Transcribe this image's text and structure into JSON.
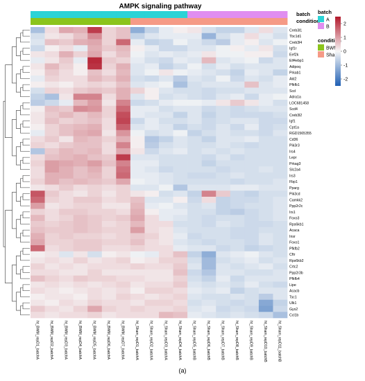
{
  "chart_data": {
    "type": "heatmap",
    "title": "AMPK signaling pathway",
    "panel_label": "(a)",
    "rows": [
      "Creb3l1",
      "Tbc1d1",
      "Creb3l4",
      "Igf1r",
      "Eef2k",
      "Eif4ebp1",
      "Adipoq",
      "Prkab1",
      "Akt2",
      "Pfkfb1",
      "Scd",
      "Adra1a",
      "LOC681458",
      "Scd4",
      "Creb3l2",
      "Igf1",
      "Cpt1a",
      "RGD1565355",
      "Cd36",
      "Pik3r3",
      "Irs4",
      "Lepr",
      "Prkag3",
      "Slc2a4",
      "Irs3",
      "Fbp1",
      "Pparg",
      "Pik3cd",
      "Camkk2",
      "Ppp2r2c",
      "Irs1",
      "Foxo3",
      "Rps6kb1",
      "Acaca",
      "Insr",
      "Foxo1",
      "Pfkfb2",
      "Cftr",
      "Rps6kb2",
      "Crtc2",
      "Ppp2r3b",
      "Pfkfb4",
      "Lipe",
      "Acacb",
      "Tsc1",
      "Ulk1",
      "Gys2",
      "Ccl1b"
    ],
    "columns": [
      "ht_BWM_repD1_batchA",
      "ht_BWM_repD2_batchA",
      "ht_BWM_repD3_batchA",
      "ht_BWM_repD4_batchA",
      "ht_BWM_repD5_batchA",
      "ht_BWM_repD6_batchA",
      "ht_BWM_repD7_batchA",
      "ht_Sham_repD1_batchA",
      "ht_Sham_repD2_batchA",
      "ht_Sham_repD3_batchA",
      "ht_Sham_repD4_batchA",
      "ht_Sham_repD5_batchB",
      "ht_Sham_repD6_batchB",
      "ht_Sham_repD7_batchB",
      "ht_Sham_repD8_batchB",
      "ht_Sham_repD9_batchB",
      "ht_Sham_repD10_batchB",
      "ht_Sham_repD11_batchB"
    ],
    "annotations": [
      {
        "name": "batch",
        "values": [
          "A",
          "A",
          "A",
          "A",
          "A",
          "A",
          "A",
          "A",
          "A",
          "A",
          "A",
          "B",
          "B",
          "B",
          "B",
          "B",
          "B",
          "B"
        ]
      },
      {
        "name": "condition",
        "values": [
          "BWM",
          "BWM",
          "BWM",
          "BWM",
          "BWM",
          "BWM",
          "BWM",
          "Sham",
          "Sham",
          "Sham",
          "Sham",
          "Sham",
          "Sham",
          "Sham",
          "Sham",
          "Sham",
          "Sham",
          "Sham"
        ]
      }
    ],
    "legend": {
      "batch": {
        "title": "batch",
        "items": [
          {
            "label": "A",
            "color": "#2bd3d6"
          },
          {
            "label": "B",
            "color": "#e08ef0"
          }
        ]
      },
      "condition": {
        "title": "condition",
        "items": [
          {
            "label": "BWM",
            "color": "#8bc41c"
          },
          {
            "label": "Sham",
            "color": "#f59a86"
          }
        ]
      }
    },
    "color_scale": {
      "min": -2.5,
      "max": 2.5,
      "low": "#1f5fb4",
      "mid": "#f7f7f7",
      "high": "#b2182b",
      "ticks": [
        2,
        1,
        0,
        -1,
        -2
      ]
    },
    "values": [
      [
        -0.9,
        0.3,
        0.9,
        0.8,
        2.1,
        0.4,
        0.6,
        -1.2,
        -0.6,
        -0.2,
        0.1,
        0.2,
        -0.4,
        -0.6,
        -0.6,
        -0.3,
        0.3,
        -0.3
      ],
      [
        -0.4,
        0.2,
        0.3,
        0.6,
        1.2,
        0.4,
        0.6,
        -0.6,
        -0.3,
        -0.2,
        -0.2,
        -0.2,
        -1.1,
        -0.4,
        -0.2,
        0.3,
        -0.2,
        -0.4
      ],
      [
        -0.3,
        0.6,
        0.5,
        0.8,
        0.9,
        0.4,
        1.6,
        -0.2,
        -0.6,
        -0.5,
        -0.1,
        -0.3,
        -0.5,
        -0.7,
        -0.2,
        0.1,
        -0.3,
        -0.1
      ],
      [
        -0.5,
        0.1,
        0.3,
        -0.2,
        0.8,
        0.5,
        0.7,
        0.1,
        -0.2,
        -0.5,
        -0.5,
        -0.3,
        -0.3,
        -0.1,
        0.1,
        -0.2,
        0.2,
        -0.4
      ],
      [
        0.2,
        0.3,
        0.8,
        0.4,
        0.9,
        0.3,
        0.6,
        -0.1,
        -0.3,
        -0.2,
        -0.3,
        -0.2,
        0.2,
        -0.1,
        -0.1,
        0.1,
        0.1,
        -0.5
      ],
      [
        -0.2,
        0.2,
        0.5,
        -0.2,
        2.3,
        0.5,
        0.4,
        -0.2,
        -0.4,
        -0.5,
        -0.2,
        -0.3,
        0.7,
        -0.3,
        -0.2,
        -0.1,
        -0.5,
        -0.3
      ],
      [
        0.2,
        0.7,
        0.4,
        0.1,
        2.2,
        0.4,
        0.8,
        -0.3,
        -0.2,
        -0.6,
        -0.4,
        -0.1,
        -0.4,
        -0.2,
        -0.4,
        -0.3,
        -0.3,
        -0.3
      ],
      [
        0.1,
        0.5,
        0.3,
        0.1,
        0.6,
        0.3,
        0.7,
        -0.3,
        -0.1,
        0.2,
        -0.1,
        -0.2,
        -0.3,
        -0.4,
        -0.6,
        -0.2,
        -0.3,
        -0.6
      ],
      [
        -0.2,
        0.4,
        0.3,
        0.3,
        0.7,
        0.5,
        0.8,
        -0.4,
        -0.5,
        -0.3,
        -0.7,
        -0.3,
        -0.4,
        -0.1,
        -0.5,
        -0.3,
        -0.4,
        -0.2
      ],
      [
        0.1,
        0.2,
        0.1,
        0.3,
        0.4,
        0.3,
        0.6,
        -0.3,
        -0.2,
        -0.1,
        -0.9,
        -0.4,
        -0.3,
        -0.3,
        -0.3,
        0.6,
        -0.3,
        -0.2
      ],
      [
        -0.4,
        0.4,
        0.3,
        0.5,
        0.6,
        0.5,
        0.8,
        0.4,
        0.1,
        -0.3,
        -0.4,
        -0.4,
        -0.5,
        -0.4,
        -0.4,
        -0.3,
        -0.3,
        -0.3
      ],
      [
        -0.6,
        -0.9,
        0.2,
        1.3,
        1.3,
        0.3,
        0.8,
        -0.3,
        0.1,
        -0.4,
        -0.3,
        -0.4,
        -0.5,
        -0.3,
        -0.2,
        -0.5,
        -0.2,
        -0.1
      ],
      [
        -0.7,
        -0.5,
        -0.2,
        0.7,
        1.0,
        0.2,
        1.3,
        -0.5,
        -0.4,
        -0.2,
        -0.1,
        -0.1,
        -0.2,
        0.2,
        0.5,
        0.2,
        -0.2,
        -0.4
      ],
      [
        0.1,
        0.6,
        0.5,
        1.2,
        1.1,
        0.4,
        1.6,
        -0.2,
        -0.2,
        -0.4,
        -0.3,
        -0.3,
        -0.5,
        -0.4,
        -0.5,
        -0.4,
        -0.3,
        -0.3
      ],
      [
        0.2,
        0.5,
        0.7,
        0.5,
        0.7,
        0.4,
        1.9,
        -0.2,
        -0.3,
        -0.3,
        -0.6,
        -0.3,
        -0.6,
        -0.4,
        -0.5,
        -0.5,
        -0.5,
        -0.4
      ],
      [
        0.2,
        0.6,
        0.4,
        0.5,
        0.6,
        0.3,
        2.0,
        -0.5,
        -0.2,
        -0.4,
        -0.4,
        -0.3,
        -0.5,
        -0.4,
        -0.3,
        -0.3,
        -0.5,
        -0.5
      ],
      [
        0.1,
        0.4,
        0.6,
        0.7,
        0.8,
        0.3,
        1.7,
        -0.3,
        -0.2,
        -0.3,
        -0.6,
        -0.4,
        -0.5,
        -0.3,
        -0.5,
        -0.2,
        -0.5,
        -0.4
      ],
      [
        -0.2,
        0.4,
        0.6,
        0.8,
        0.9,
        0.2,
        1.1,
        -0.1,
        -0.4,
        -0.3,
        -0.1,
        -0.6,
        -0.4,
        -0.3,
        -0.4,
        -0.4,
        -0.5,
        -0.3
      ],
      [
        0.3,
        0.5,
        0.2,
        0.7,
        0.6,
        0.4,
        0.8,
        0.1,
        -0.8,
        -0.6,
        -0.3,
        -0.4,
        -0.6,
        -0.3,
        -0.3,
        -0.2,
        -0.4,
        -0.4
      ],
      [
        0.4,
        0.3,
        0.5,
        0.6,
        0.6,
        0.3,
        1.3,
        0.1,
        -0.7,
        -0.4,
        -0.3,
        -0.4,
        -0.4,
        -0.3,
        -0.4,
        -0.5,
        -0.4,
        -0.4
      ],
      [
        -0.8,
        0.5,
        0.7,
        0.6,
        0.7,
        0.3,
        0.9,
        0.2,
        -0.5,
        -0.3,
        -0.2,
        -0.4,
        -0.3,
        -0.4,
        -0.3,
        -0.4,
        -0.4,
        -0.4
      ],
      [
        0.3,
        0.6,
        0.7,
        0.8,
        0.6,
        0.5,
        2.1,
        -0.3,
        -0.3,
        -0.4,
        -0.4,
        -0.4,
        -0.5,
        -0.3,
        -0.5,
        -0.4,
        -0.4,
        -0.4
      ],
      [
        0.4,
        1.0,
        0.9,
        0.8,
        1.0,
        0.6,
        1.3,
        -0.2,
        -0.2,
        -0.4,
        -0.4,
        -0.4,
        -0.6,
        -0.4,
        -0.4,
        -0.4,
        -0.4,
        -0.4
      ],
      [
        0.3,
        1.0,
        0.8,
        0.6,
        0.8,
        0.4,
        1.5,
        -0.2,
        -0.3,
        -0.5,
        -0.4,
        -0.4,
        -0.4,
        -0.5,
        -0.4,
        -0.4,
        -0.3,
        -0.4
      ],
      [
        0.3,
        0.8,
        0.8,
        0.6,
        0.7,
        0.4,
        1.6,
        -0.2,
        -0.2,
        -0.3,
        -0.4,
        -0.5,
        -0.5,
        -0.4,
        -0.3,
        -0.4,
        -0.4,
        -0.4
      ],
      [
        0.4,
        0.8,
        0.6,
        0.7,
        0.6,
        0.5,
        0.9,
        -0.1,
        -0.2,
        -0.3,
        -0.4,
        -0.4,
        -0.4,
        -0.4,
        -0.5,
        -0.4,
        -0.4,
        -0.3
      ],
      [
        0.2,
        0.3,
        0.5,
        0.3,
        0.4,
        0.3,
        0.4,
        -0.3,
        -0.3,
        -0.1,
        -0.8,
        -0.3,
        -0.3,
        -0.3,
        -0.2,
        -0.2,
        -0.3,
        -0.3
      ],
      [
        1.8,
        0.5,
        0.3,
        0.2,
        0.4,
        0.2,
        0.4,
        0.2,
        0.1,
        -0.4,
        -0.3,
        -0.6,
        1.3,
        0.5,
        -0.5,
        -0.6,
        -0.4,
        -0.4
      ],
      [
        1.6,
        0.4,
        0.3,
        0.5,
        0.5,
        0.3,
        0.4,
        0.6,
        -0.3,
        -0.3,
        0.1,
        -0.5,
        0.3,
        -0.6,
        -0.5,
        -0.5,
        -0.4,
        -0.3
      ],
      [
        1.0,
        0.2,
        0.3,
        0.4,
        0.4,
        0.2,
        0.2,
        0.7,
        -0.2,
        -0.1,
        -0.3,
        -0.4,
        -0.3,
        -0.6,
        -0.5,
        -0.4,
        -0.4,
        -0.3
      ],
      [
        0.4,
        0.3,
        0.5,
        0.5,
        0.4,
        0.4,
        0.3,
        0.8,
        0.1,
        -0.2,
        -0.2,
        -0.4,
        -0.4,
        -0.6,
        -0.7,
        -0.5,
        -0.4,
        -0.3
      ],
      [
        0.7,
        0.3,
        0.4,
        0.6,
        0.5,
        0.4,
        0.5,
        0.9,
        0.3,
        -0.2,
        -0.3,
        -0.4,
        -0.5,
        -0.4,
        -0.4,
        -0.5,
        -0.4,
        -0.3
      ],
      [
        0.5,
        0.4,
        0.5,
        0.6,
        0.5,
        0.3,
        0.4,
        0.7,
        0.3,
        0.3,
        -0.4,
        -0.4,
        -0.5,
        -0.3,
        -0.4,
        -0.5,
        -0.5,
        -0.4
      ],
      [
        0.6,
        0.5,
        0.5,
        0.6,
        0.5,
        0.4,
        0.4,
        1.0,
        0.3,
        0.2,
        -0.3,
        -0.4,
        -0.4,
        -0.4,
        -0.5,
        -0.5,
        -0.4,
        -0.4
      ],
      [
        0.8,
        0.4,
        0.5,
        0.4,
        0.4,
        0.3,
        0.4,
        0.5,
        0.4,
        0.2,
        -0.2,
        -0.5,
        -0.4,
        -0.4,
        -0.5,
        -0.5,
        -0.3,
        -0.4
      ],
      [
        0.9,
        0.4,
        0.4,
        0.5,
        0.5,
        0.4,
        0.4,
        0.6,
        0.3,
        0.2,
        -0.3,
        -0.4,
        -0.5,
        -0.4,
        -0.4,
        -0.5,
        -0.3,
        -0.4
      ],
      [
        1.6,
        0.3,
        0.4,
        0.5,
        0.5,
        0.3,
        0.3,
        0.4,
        0.3,
        0.3,
        -0.2,
        -0.3,
        -0.3,
        -0.5,
        -0.4,
        -0.6,
        -0.5,
        -0.4
      ],
      [
        0.1,
        0.2,
        -0.3,
        0.2,
        -0.4,
        0.1,
        0.2,
        -0.1,
        -0.2,
        0.3,
        0.6,
        -0.6,
        -1.2,
        -0.3,
        -0.2,
        -0.1,
        -0.3,
        -0.4
      ],
      [
        0.2,
        0.3,
        0.2,
        0.4,
        0.2,
        0.3,
        0.4,
        0.1,
        0.2,
        0.4,
        0.4,
        -0.4,
        -1.0,
        -0.4,
        -0.3,
        -0.2,
        -0.4,
        -0.3
      ],
      [
        0.4,
        0.2,
        0.3,
        0.2,
        0.3,
        0.3,
        0.3,
        0.4,
        0.3,
        0.3,
        0.5,
        -0.3,
        -1.0,
        -0.3,
        -0.4,
        -0.3,
        -0.2,
        -0.4
      ],
      [
        0.3,
        0.3,
        0.2,
        0.2,
        0.4,
        0.2,
        0.2,
        0.2,
        0.2,
        0.2,
        0.6,
        -0.5,
        -0.8,
        -0.3,
        -0.3,
        -0.4,
        -0.4,
        -0.3
      ],
      [
        0.6,
        0.4,
        0.3,
        0.5,
        0.4,
        0.4,
        0.3,
        0.3,
        0.2,
        0.2,
        0.4,
        -0.4,
        -0.6,
        -0.2,
        -0.5,
        -0.3,
        -0.3,
        -0.3
      ],
      [
        0.2,
        0.3,
        0.2,
        0.3,
        0.2,
        0.3,
        0.4,
        0.2,
        0.3,
        0.3,
        0.5,
        -0.3,
        -0.4,
        -0.3,
        -0.4,
        -0.2,
        -0.4,
        -0.5
      ],
      [
        0.3,
        0.2,
        0.1,
        0.2,
        0.3,
        0.2,
        0.3,
        0.1,
        0.4,
        0.4,
        0.3,
        -0.2,
        -0.3,
        -0.2,
        -0.6,
        -0.4,
        -0.3,
        -0.3
      ],
      [
        0.1,
        0.2,
        0.2,
        0.1,
        0.3,
        0.2,
        0.4,
        0.3,
        0.2,
        0.3,
        0.4,
        -0.3,
        -0.4,
        -0.4,
        -0.3,
        -0.4,
        -0.7,
        -0.3
      ],
      [
        0.2,
        0.1,
        0.3,
        0.2,
        0.4,
        0.3,
        0.3,
        0.2,
        0.4,
        0.4,
        0.3,
        -0.4,
        -0.3,
        -0.4,
        -0.5,
        -0.4,
        -1.3,
        -0.6
      ],
      [
        0.5,
        0.3,
        0.2,
        0.4,
        0.9,
        0.4,
        0.3,
        0.4,
        0.3,
        0.3,
        0.4,
        -0.3,
        -0.2,
        -0.5,
        -0.4,
        -0.5,
        -1.4,
        -0.5
      ],
      [
        0.3,
        0.2,
        0.3,
        0.3,
        0.4,
        0.2,
        0.3,
        0.3,
        0.3,
        0.7,
        0.6,
        -0.2,
        -0.3,
        -0.4,
        -0.3,
        -0.4,
        -0.5,
        -0.9
      ]
    ]
  }
}
